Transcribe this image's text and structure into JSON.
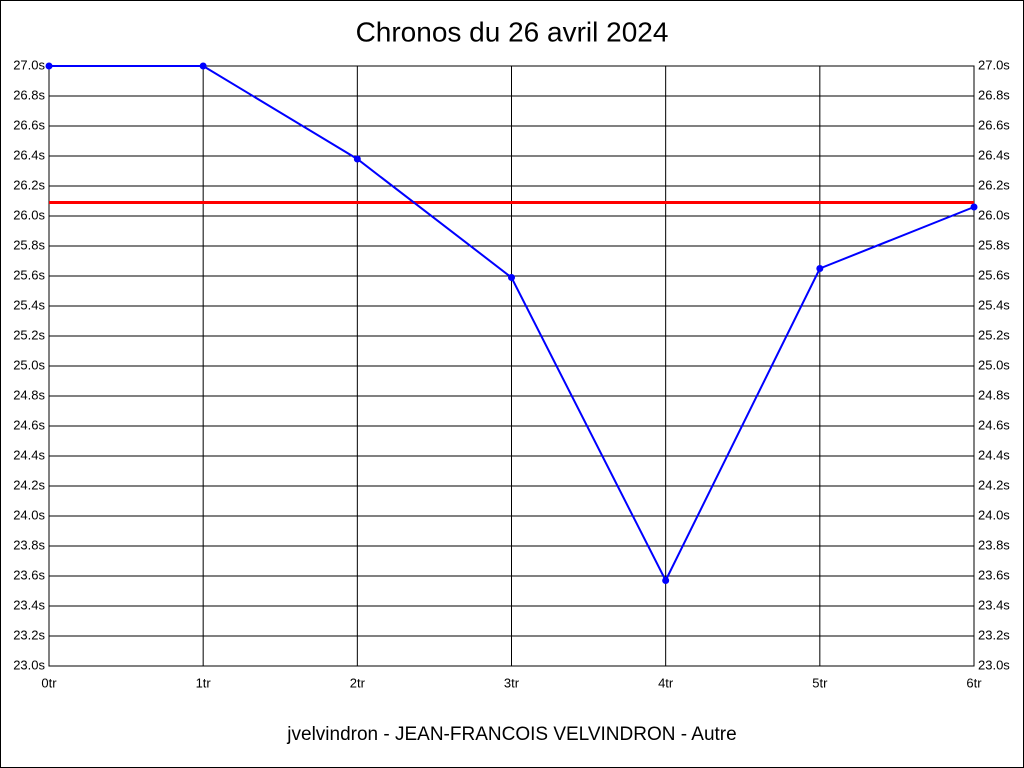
{
  "chart_data": {
    "type": "line",
    "title": "Chronos du 26 avril 2024",
    "x_label": "jvelvindron - JEAN-FRANCOIS VELVINDRON - Autre",
    "x": [
      0,
      1,
      2,
      3,
      4,
      5,
      6
    ],
    "series": [
      {
        "color": "#0000ff",
        "values": [
          27.0,
          27.0,
          26.38,
          25.59,
          23.57,
          25.65,
          26.06
        ]
      }
    ],
    "hlines": [
      {
        "value": 26.09,
        "color": "#ff0000"
      }
    ],
    "xlim": [
      0,
      6
    ],
    "xticks": [
      {
        "value": 0,
        "label": "0tr"
      },
      {
        "value": 1,
        "label": "1tr"
      },
      {
        "value": 2,
        "label": "2tr"
      },
      {
        "value": 3,
        "label": "3tr"
      },
      {
        "value": 4,
        "label": "4tr"
      },
      {
        "value": 5,
        "label": "5tr"
      },
      {
        "value": 6,
        "label": "6tr"
      }
    ],
    "ylim": [
      23.0,
      27.0
    ],
    "yticks": [
      {
        "value": 23.0,
        "label": "23.0s"
      },
      {
        "value": 23.2,
        "label": "23.2s"
      },
      {
        "value": 23.4,
        "label": "23.4s"
      },
      {
        "value": 23.6,
        "label": "23.6s"
      },
      {
        "value": 23.8,
        "label": "23.8s"
      },
      {
        "value": 24.0,
        "label": "24.0s"
      },
      {
        "value": 24.2,
        "label": "24.2s"
      },
      {
        "value": 24.4,
        "label": "24.4s"
      },
      {
        "value": 24.6,
        "label": "24.6s"
      },
      {
        "value": 24.8,
        "label": "24.8s"
      },
      {
        "value": 25.0,
        "label": "25.0s"
      },
      {
        "value": 25.2,
        "label": "25.2s"
      },
      {
        "value": 25.4,
        "label": "25.4s"
      },
      {
        "value": 25.6,
        "label": "25.6s"
      },
      {
        "value": 25.8,
        "label": "25.8s"
      },
      {
        "value": 26.0,
        "label": "26.0s"
      },
      {
        "value": 26.2,
        "label": "26.2s"
      },
      {
        "value": 26.4,
        "label": "26.4s"
      },
      {
        "value": 26.6,
        "label": "26.6s"
      },
      {
        "value": 26.8,
        "label": "26.8s"
      },
      {
        "value": 27.0,
        "label": "27.0s"
      }
    ],
    "grid": true
  }
}
